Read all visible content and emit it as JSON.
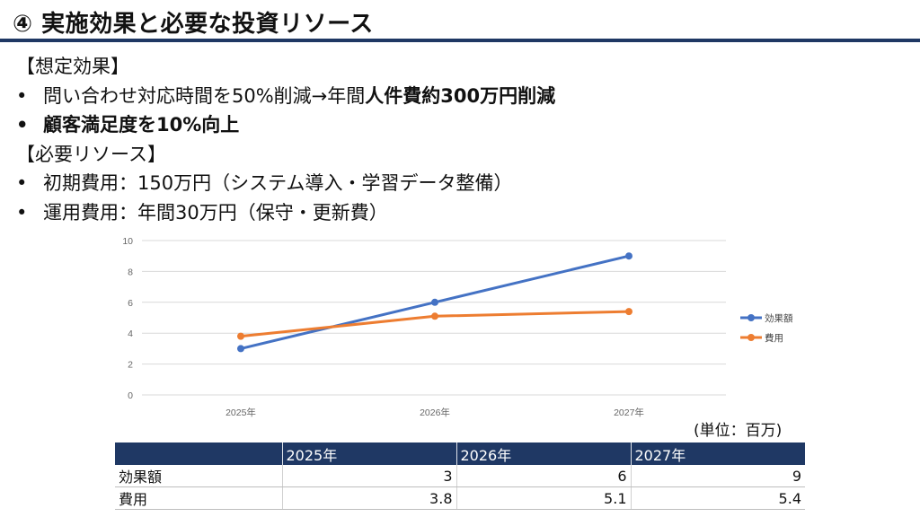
{
  "title": "④ 実施効果と必要な投資リソース",
  "effects": {
    "heading": "【想定効果】",
    "items": [
      {
        "prefix": "問い合わせ対応時間を50%削減→年間",
        "emphasis": "人件費約300万円削減"
      },
      {
        "prefix": "",
        "emphasis": "顧客満足度を10%向上"
      }
    ]
  },
  "resources": {
    "heading": "【必要リソース】",
    "items": [
      "初期費用：150万円（システム導入・学習データ整備）",
      "運用費用：年間30万円（保守・更新費）"
    ]
  },
  "chart_data": {
    "type": "line",
    "categories": [
      "2025年",
      "2026年",
      "2027年"
    ],
    "series": [
      {
        "name": "効果額",
        "values": [
          3,
          6,
          9
        ],
        "color": "#4472c4"
      },
      {
        "name": "費用",
        "values": [
          3.8,
          5.1,
          5.4
        ],
        "color": "#ed7d31"
      }
    ],
    "ylim": [
      0,
      10
    ],
    "yticks": [
      0,
      2,
      4,
      6,
      8,
      10
    ],
    "grid": true,
    "legend": "right"
  },
  "unit_label": "(単位：百万)",
  "table": {
    "headers": [
      "",
      "2025年",
      "2026年",
      "2027年"
    ],
    "rows": [
      {
        "label": "効果額",
        "values": [
          "3",
          "6",
          "9"
        ]
      },
      {
        "label": "費用",
        "values": [
          "3.8",
          "5.1",
          "5.4"
        ]
      }
    ]
  }
}
